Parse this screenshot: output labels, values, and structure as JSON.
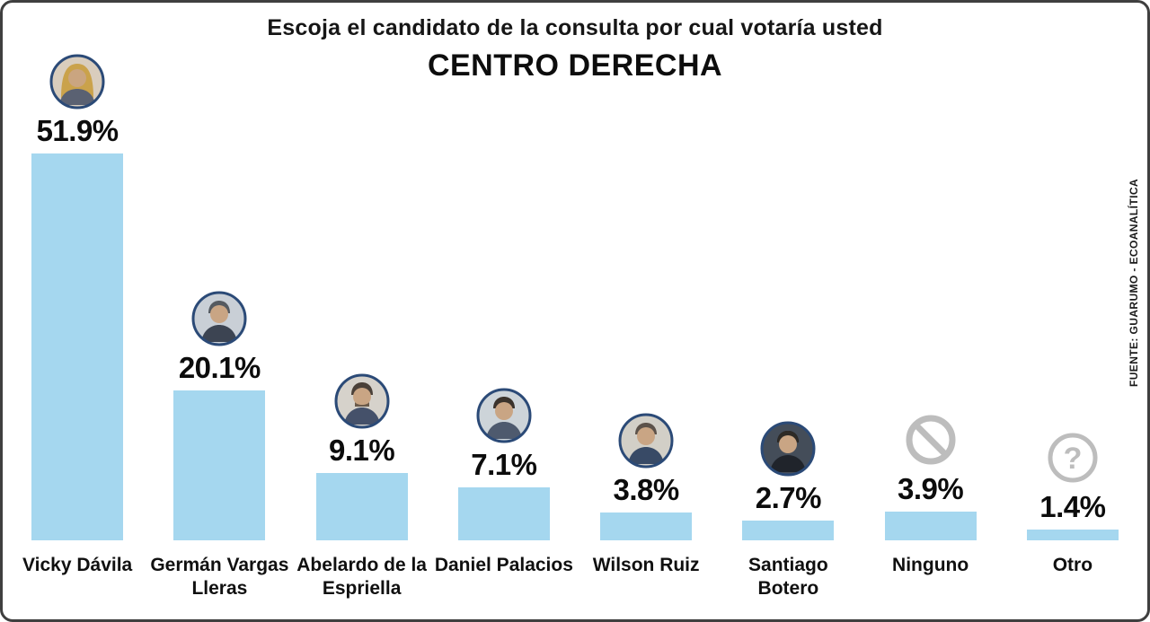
{
  "title": "Escoja el candidato de la consulta por cual votaría usted",
  "subtitle": "CENTRO DERECHA",
  "source": "FUENTE: GUARUMO - ECOANALÍTICA",
  "colors": {
    "bar": "#a5d7ef",
    "frame_border": "#3f3f3f",
    "avatar_ring": "#2b4a77",
    "muted_icon": "#bdbdbd"
  },
  "chart_data": {
    "type": "bar",
    "title": "Escoja el candidato de la consulta por cual votaría usted",
    "subtitle": "CENTRO DERECHA",
    "source": "FUENTE: GUARUMO - ECOANALÍTICA",
    "categories": [
      "Vicky Dávila",
      "Germán Vargas Lleras",
      "Abelardo de la Espriella",
      "Daniel Palacios",
      "Wilson Ruiz",
      "Santiago Botero",
      "Ninguno",
      "Otro"
    ],
    "values": [
      51.9,
      20.1,
      9.1,
      7.1,
      3.8,
      2.7,
      3.9,
      1.4
    ],
    "value_labels": [
      "51.9%",
      "20.1%",
      "9.1%",
      "7.1%",
      "3.8%",
      "2.7%",
      "3.9%",
      "1.4%"
    ],
    "xlabel": "",
    "ylabel": "",
    "ylim": [
      0,
      55
    ],
    "grid": false,
    "legend": "none",
    "bar_color": "#a5d7ef",
    "value_label_position": "above-bar",
    "category_icons": [
      "photo-avatar",
      "photo-avatar",
      "photo-avatar",
      "photo-avatar",
      "photo-avatar",
      "photo-avatar",
      "no-symbol",
      "question-mark"
    ]
  }
}
